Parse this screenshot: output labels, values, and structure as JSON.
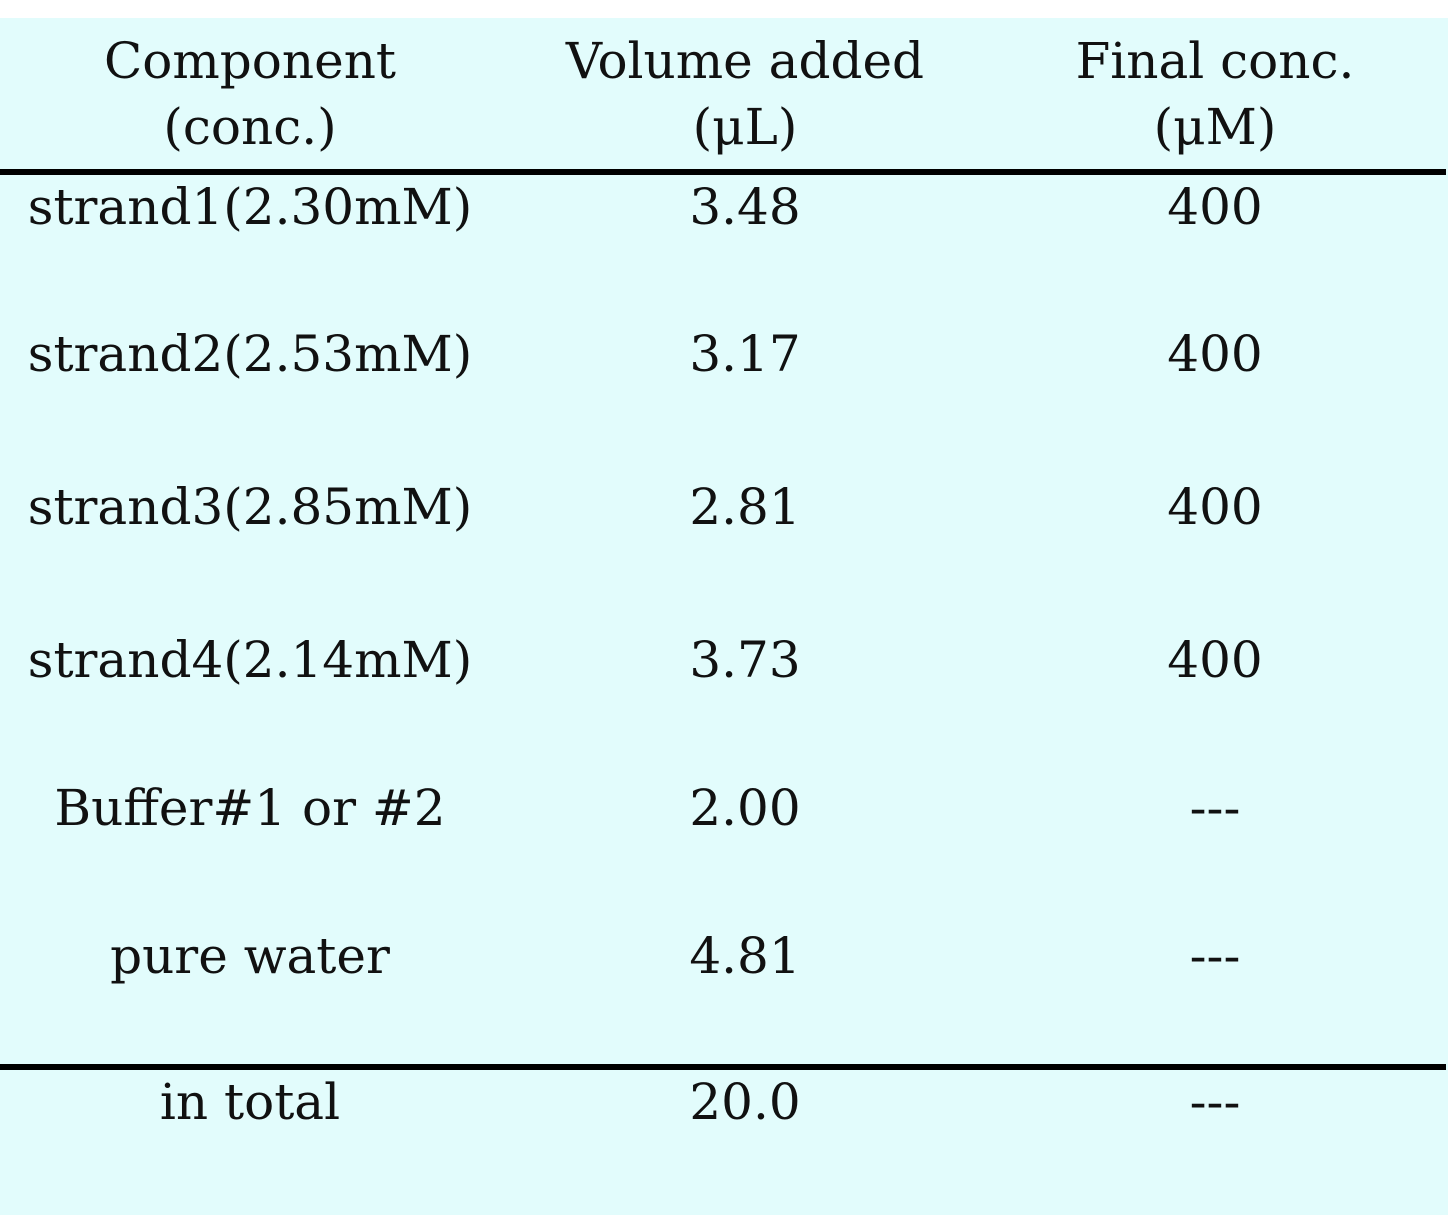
{
  "table": {
    "headers": [
      {
        "line1": "Component",
        "line2": "(conc.)"
      },
      {
        "line1": "Volume added",
        "line2": "(μL)"
      },
      {
        "line1": "Final conc.",
        "line2": "(μM)"
      }
    ],
    "rows": [
      {
        "component": "strand1(2.30mM)",
        "volume": "3.48",
        "final": "400"
      },
      {
        "component": "strand2(2.53mM)",
        "volume": "3.17",
        "final": "400"
      },
      {
        "component": "strand3(2.85mM)",
        "volume": "2.81",
        "final": "400"
      },
      {
        "component": "strand4(2.14mM)",
        "volume": "3.73",
        "final": "400"
      },
      {
        "component": "Buffer#1 or #2",
        "volume": "2.00",
        "final": "---"
      },
      {
        "component": "pure water",
        "volume": "4.81",
        "final": "---"
      }
    ],
    "total": {
      "component": "in total",
      "volume": "20.0",
      "final": "---"
    }
  },
  "colors": {
    "panel_background": "#e2fcfc",
    "rule": "#000000",
    "text": "#111111"
  }
}
